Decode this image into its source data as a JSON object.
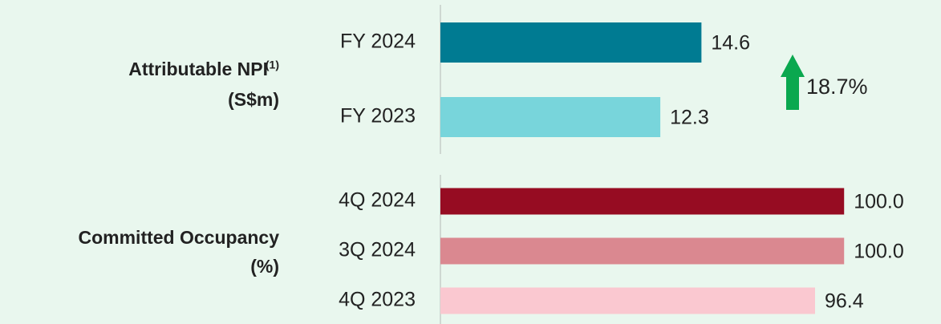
{
  "chart_data": [
    {
      "type": "bar",
      "orientation": "horizontal",
      "title": "Attributable NPI",
      "footnote_ref": "(1)",
      "unit": "(S$m)",
      "categories": [
        "FY 2024",
        "FY 2023"
      ],
      "values": [
        14.6,
        12.3
      ],
      "colors": [
        "#007b92",
        "#78d5db"
      ],
      "xlim": [
        0,
        28
      ],
      "annotation": {
        "text": "18.7%",
        "color": "#0aa84f"
      }
    },
    {
      "type": "bar",
      "orientation": "horizontal",
      "title": "Committed Occupancy",
      "unit": "(%)",
      "categories": [
        "4Q 2024",
        "3Q 2024",
        "4Q 2023"
      ],
      "values": [
        100,
        100,
        96.4
      ],
      "value_labels": [
        "100.0",
        "100.0",
        "96.4"
      ],
      "colors": [
        "#960c22",
        "#da8890",
        "#fac8d0"
      ],
      "xlim": [
        50,
        112
      ]
    }
  ]
}
